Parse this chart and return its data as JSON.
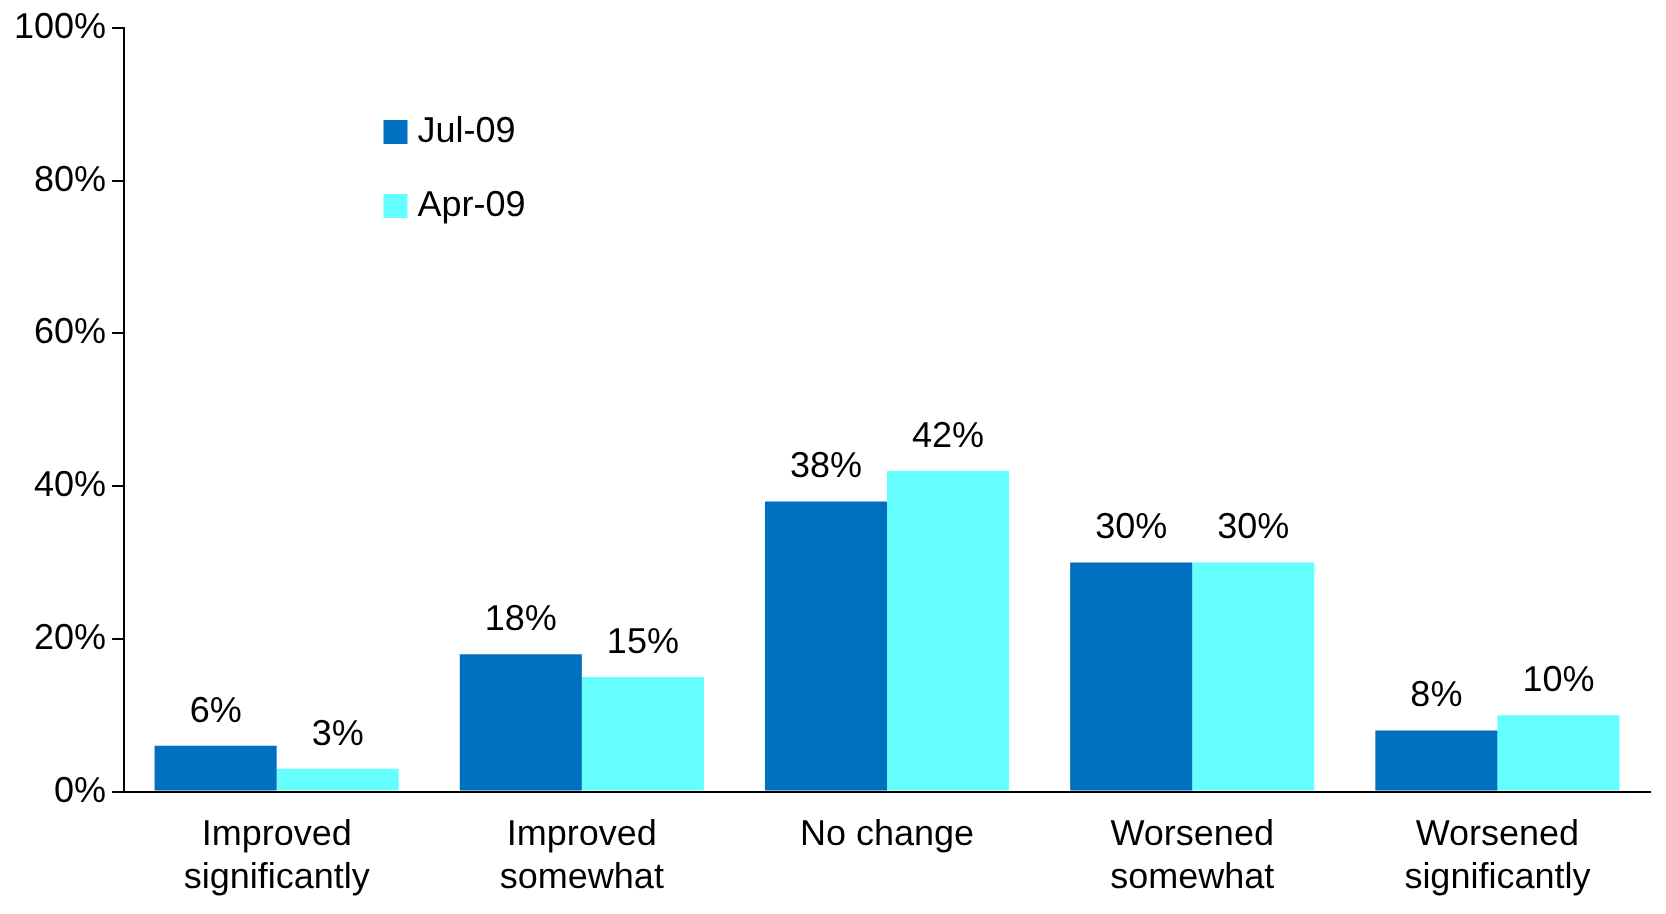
{
  "chart_data": {
    "type": "bar",
    "categories": [
      "Improved\nsignificantly",
      "Improved\nsomewhat",
      "No change",
      "Worsened\nsomewhat",
      "Worsened\nsignificantly"
    ],
    "series": [
      {
        "name": "Jul-09",
        "color": "#0070c0",
        "values": [
          6,
          18,
          38,
          30,
          8
        ],
        "value_labels": [
          "6%",
          "18%",
          "38%",
          "30%",
          "8%"
        ]
      },
      {
        "name": "Apr-09",
        "color": "#66ffff",
        "values": [
          3,
          15,
          42,
          30,
          10
        ],
        "value_labels": [
          "3%",
          "15%",
          "42%",
          "30%",
          "10%"
        ]
      }
    ],
    "ylim": [
      0,
      100
    ],
    "yticks": [
      {
        "value": 0,
        "label": "0%"
      },
      {
        "value": 20,
        "label": "20%"
      },
      {
        "value": 40,
        "label": "40%"
      },
      {
        "value": 60,
        "label": "60%"
      },
      {
        "value": 80,
        "label": "80%"
      },
      {
        "value": 100,
        "label": "100%"
      }
    ],
    "grid": false,
    "legend": "top left"
  }
}
